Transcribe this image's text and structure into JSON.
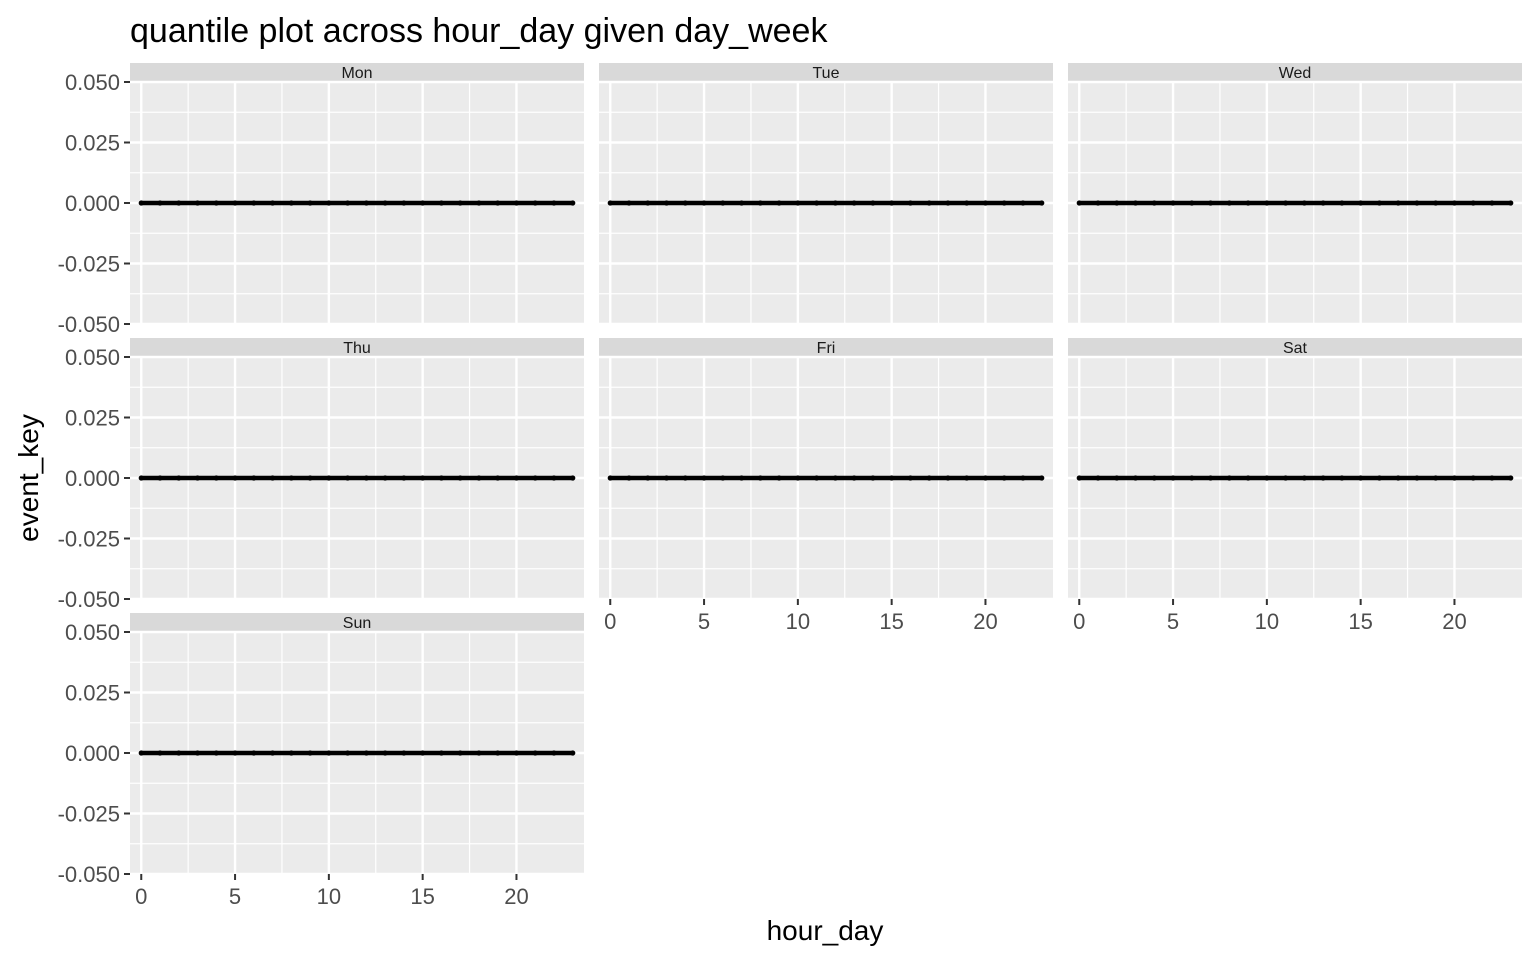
{
  "chart_data": {
    "type": "line",
    "title": "quantile plot across hour_day given day_week",
    "xlabel": "hour_day",
    "ylabel": "event_key",
    "xlim": [
      -0.6,
      23.6
    ],
    "ylim": [
      -0.05,
      0.05
    ],
    "x_ticks": [
      0,
      5,
      10,
      15,
      20
    ],
    "x_tick_labels": [
      "0",
      "5",
      "10",
      "15",
      "20"
    ],
    "y_ticks": [
      0.05,
      0.025,
      0,
      -0.025,
      -0.05
    ],
    "y_tick_labels": [
      "0.050",
      "0.025",
      "0.000",
      "-0.025",
      "-0.050"
    ],
    "grid": true,
    "x": [
      0,
      1,
      2,
      3,
      4,
      5,
      6,
      7,
      8,
      9,
      10,
      11,
      12,
      13,
      14,
      15,
      16,
      17,
      18,
      19,
      20,
      21,
      22,
      23
    ],
    "facets": [
      {
        "name": "Mon",
        "values": [
          0,
          0,
          0,
          0,
          0,
          0,
          0,
          0,
          0,
          0,
          0,
          0,
          0,
          0,
          0,
          0,
          0,
          0,
          0,
          0,
          0,
          0,
          0,
          0
        ]
      },
      {
        "name": "Tue",
        "values": [
          0,
          0,
          0,
          0,
          0,
          0,
          0,
          0,
          0,
          0,
          0,
          0,
          0,
          0,
          0,
          0,
          0,
          0,
          0,
          0,
          0,
          0,
          0,
          0
        ]
      },
      {
        "name": "Wed",
        "values": [
          0,
          0,
          0,
          0,
          0,
          0,
          0,
          0,
          0,
          0,
          0,
          0,
          0,
          0,
          0,
          0,
          0,
          0,
          0,
          0,
          0,
          0,
          0,
          0
        ]
      },
      {
        "name": "Thu",
        "values": [
          0,
          0,
          0,
          0,
          0,
          0,
          0,
          0,
          0,
          0,
          0,
          0,
          0,
          0,
          0,
          0,
          0,
          0,
          0,
          0,
          0,
          0,
          0,
          0
        ]
      },
      {
        "name": "Fri",
        "values": [
          0,
          0,
          0,
          0,
          0,
          0,
          0,
          0,
          0,
          0,
          0,
          0,
          0,
          0,
          0,
          0,
          0,
          0,
          0,
          0,
          0,
          0,
          0,
          0
        ]
      },
      {
        "name": "Sat",
        "values": [
          0,
          0,
          0,
          0,
          0,
          0,
          0,
          0,
          0,
          0,
          0,
          0,
          0,
          0,
          0,
          0,
          0,
          0,
          0,
          0,
          0,
          0,
          0,
          0
        ]
      },
      {
        "name": "Sun",
        "values": [
          0,
          0,
          0,
          0,
          0,
          0,
          0,
          0,
          0,
          0,
          0,
          0,
          0,
          0,
          0,
          0,
          0,
          0,
          0,
          0,
          0,
          0,
          0,
          0
        ]
      }
    ],
    "colors": {
      "panel_background": "#ebebeb",
      "strip_background": "#d9d9d9",
      "grid": "#ffffff",
      "line": "#000000"
    }
  }
}
